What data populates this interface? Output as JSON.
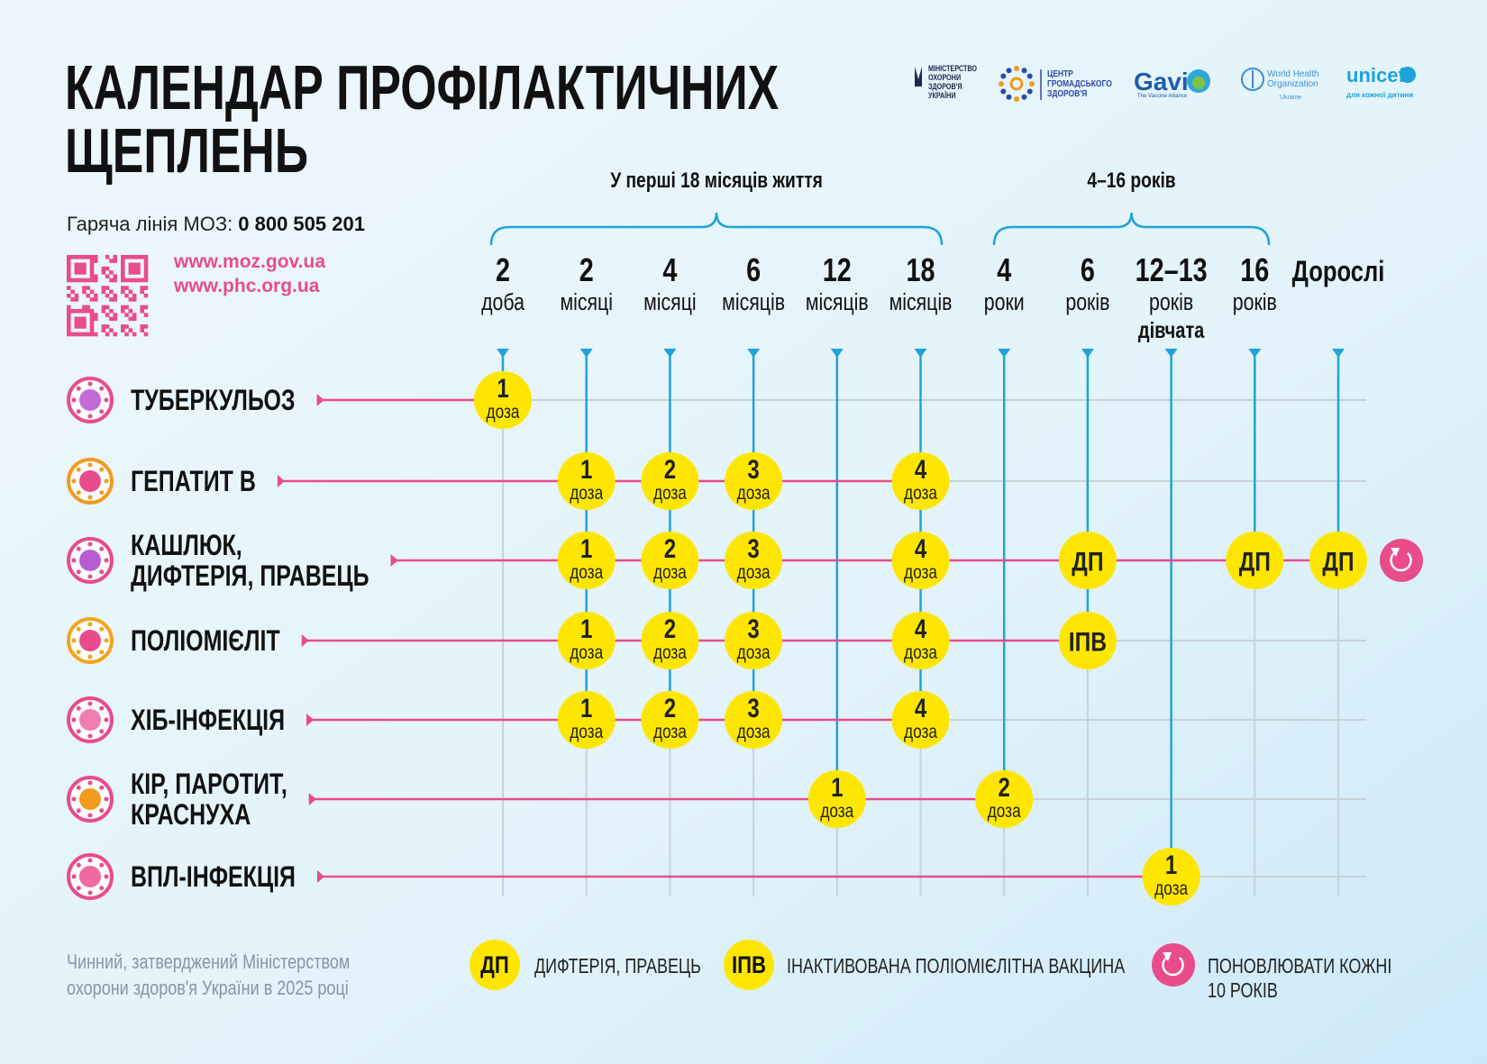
{
  "header": {
    "title": [
      "КАЛЕНДАР ПРОФІЛАКТИЧНИХ",
      "ЩЕПЛЕНЬ"
    ],
    "hotline_label": "Гаряча лінія МОЗ:",
    "hotline_number": "0 800 505 201",
    "links": [
      "www.moz.gov.ua",
      "www.phc.org.ua"
    ]
  },
  "logos": {
    "moz": [
      "МІНІСТЕРСТВО",
      "ОХОРОНИ",
      "ЗДОРОВ'Я",
      "УКРАЇНИ"
    ],
    "phc": [
      "ЦЕНТР",
      "ГРОМАДСЬКОГО",
      "ЗДОРОВ'Я"
    ],
    "gavi": [
      "Gavi",
      "The Vaccine Alliance"
    ],
    "who": [
      "World Health",
      "Organization",
      "Ukraine"
    ],
    "unicef": [
      "unicef",
      "для кожної дитини"
    ]
  },
  "groups": [
    {
      "label": "У перші 18 місяців життя"
    },
    {
      "label": "4–16 років"
    }
  ],
  "columns": [
    {
      "number": "2",
      "unit": "доба"
    },
    {
      "number": "2",
      "unit": "місяці"
    },
    {
      "number": "4",
      "unit": "місяці"
    },
    {
      "number": "6",
      "unit": "місяців"
    },
    {
      "number": "12",
      "unit": "місяців"
    },
    {
      "number": "18",
      "unit": "місяців"
    },
    {
      "number": "4",
      "unit": "роки"
    },
    {
      "number": "6",
      "unit": "років"
    },
    {
      "number": "12–13",
      "unit": "років",
      "note": "дівчата"
    },
    {
      "number": "16",
      "unit": "років"
    },
    {
      "number": "Дорослі"
    }
  ],
  "rows": [
    {
      "name": [
        "ТУБЕРКУЛЬОЗ"
      ],
      "doses": [
        {
          "number": "1",
          "unit": "доза"
        },
        null,
        null,
        null,
        null,
        null,
        null,
        null,
        null,
        null,
        null
      ]
    },
    {
      "name": [
        "ГЕПАТИТ В"
      ],
      "doses": [
        null,
        {
          "number": "1",
          "unit": "доза"
        },
        {
          "number": "2",
          "unit": "доза"
        },
        {
          "number": "3",
          "unit": "доза"
        },
        null,
        {
          "number": "4",
          "unit": "доза"
        },
        null,
        null,
        null,
        null,
        null
      ]
    },
    {
      "name": [
        "КАШЛЮК,",
        "ДИФТЕРІЯ, ПРАВЕЦЬ"
      ],
      "renew": true,
      "doses": [
        null,
        {
          "number": "1",
          "unit": "доза"
        },
        {
          "number": "2",
          "unit": "доза"
        },
        {
          "number": "3",
          "unit": "доза"
        },
        null,
        {
          "number": "4",
          "unit": "доза"
        },
        null,
        {
          "label": "ДП"
        },
        null,
        {
          "label": "ДП"
        },
        {
          "label": "ДП"
        }
      ]
    },
    {
      "name": [
        "ПОЛІОМІЄЛІТ"
      ],
      "doses": [
        null,
        {
          "number": "1",
          "unit": "доза"
        },
        {
          "number": "2",
          "unit": "доза"
        },
        {
          "number": "3",
          "unit": "доза"
        },
        null,
        {
          "number": "4",
          "unit": "доза"
        },
        null,
        {
          "label": "ІПВ"
        },
        null,
        null,
        null
      ]
    },
    {
      "name": [
        "ХІБ-ІНФЕКЦІЯ"
      ],
      "doses": [
        null,
        {
          "number": "1",
          "unit": "доза"
        },
        {
          "number": "2",
          "unit": "доза"
        },
        {
          "number": "3",
          "unit": "доза"
        },
        null,
        {
          "number": "4",
          "unit": "доза"
        },
        null,
        null,
        null,
        null,
        null
      ]
    },
    {
      "name": [
        "КІР, ПАРОТИТ,",
        "КРАСНУХА"
      ],
      "doses": [
        null,
        null,
        null,
        null,
        {
          "number": "1",
          "unit": "доза"
        },
        null,
        {
          "number": "2",
          "unit": "доза"
        },
        null,
        null,
        null,
        null
      ]
    },
    {
      "name": [
        "ВПЛ-ІНФЕКЦІЯ"
      ],
      "doses": [
        null,
        null,
        null,
        null,
        null,
        null,
        null,
        null,
        {
          "number": "1",
          "unit": "доза"
        },
        null,
        null
      ]
    }
  ],
  "legend": [
    {
      "badge": "ДП",
      "text": [
        "ДИФТЕРІЯ, ПРАВЕЦЬ"
      ]
    },
    {
      "badge": "ІПВ",
      "text": [
        "ІНАКТИВОВАНА ПОЛІОМІЄЛІТНА ВАКЦИНА"
      ]
    },
    {
      "text": [
        "ПОНОВЛЮВАТИ КОЖНІ",
        "10 РОКІВ"
      ]
    }
  ],
  "footer": [
    "Чинний, затверджений Міністерством",
    "охорони здоров'я України в 2025 році"
  ]
}
